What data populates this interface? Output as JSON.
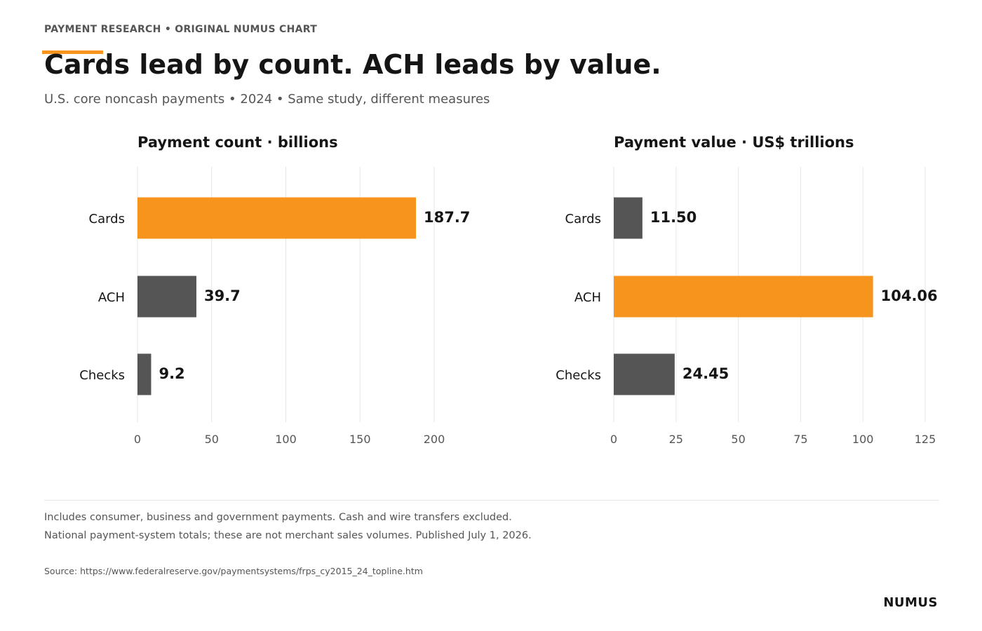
{
  "header": {
    "kicker": "PAYMENT RESEARCH  •  ORIGINAL NUMUS CHART",
    "title": "Cards lead by count. ACH leads by value.",
    "subtitle": "U.S. core noncash payments • 2024 • Same study, different measures"
  },
  "colors": {
    "accent": "#F7941D",
    "bar_default": "#555555",
    "grid": "#e6e6e6",
    "text": "#151515",
    "muted": "#555555"
  },
  "chart_data": [
    {
      "type": "bar",
      "orientation": "horizontal",
      "title": "Payment count · billions",
      "categories": [
        "Cards",
        "ACH",
        "Checks"
      ],
      "values": [
        187.7,
        39.7,
        9.2
      ],
      "value_labels": [
        "187.7",
        "39.7",
        "9.2"
      ],
      "highlight": "Cards",
      "xlim": [
        0,
        200
      ],
      "ticks": [
        0,
        50,
        100,
        150,
        200
      ],
      "grid": true
    },
    {
      "type": "bar",
      "orientation": "horizontal",
      "title": "Payment value · US$ trillions",
      "categories": [
        "Cards",
        "ACH",
        "Checks"
      ],
      "values": [
        11.5,
        104.06,
        24.45
      ],
      "value_labels": [
        "11.50",
        "104.06",
        "24.45"
      ],
      "highlight": "ACH",
      "xlim": [
        0,
        125
      ],
      "ticks": [
        0,
        25,
        50,
        75,
        100,
        125
      ],
      "grid": true
    }
  ],
  "footer": {
    "note_1": "Includes consumer, business and government payments. Cash and wire transfers excluded.",
    "note_2": "National payment-system totals; these are not merchant sales volumes. Published July 1, 2026.",
    "source": "Source: https://www.federalreserve.gov/paymentsystems/frps_cy2015_24_topline.htm",
    "brand": "NUMUS"
  }
}
